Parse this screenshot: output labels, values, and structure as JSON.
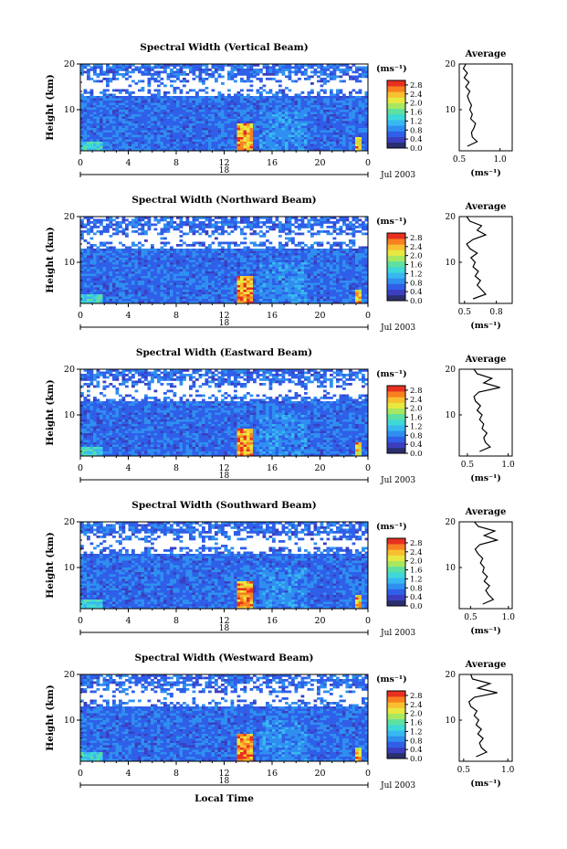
{
  "figure": {
    "x_axis_label": "Local Time",
    "height_axis_label": "Height (km)",
    "date_label": "Jul 2003",
    "day_marker": "18",
    "colorbar_unit": "(ms⁻¹)",
    "average_title": "Average",
    "average_unit": "(ms⁻¹)"
  },
  "colors": {
    "colormap": [
      "#2b2f6e",
      "#3b3fbf",
      "#2f5fe8",
      "#2f8ff0",
      "#38b8f0",
      "#3fd8d8",
      "#5ee0a0",
      "#a8e860",
      "#e8e840",
      "#f8c030",
      "#f88020",
      "#e83020"
    ]
  },
  "chart_data": [
    {
      "type": "heatmap",
      "title": "Spectral Width (Vertical Beam)",
      "xlabel": "Local Time",
      "ylabel": "Height (km)",
      "x_ticks": [
        "0",
        "4",
        "8",
        "12",
        "16",
        "20",
        "0"
      ],
      "y_ticks": [
        "10",
        "20"
      ],
      "xlim": [
        0,
        24
      ],
      "ylim": [
        1,
        20
      ],
      "colorbar": {
        "ticks": [
          "0.0",
          "0.4",
          "0.8",
          "1.2",
          "1.6",
          "2.0",
          "2.4",
          "2.8"
        ],
        "range": [
          0,
          3.0
        ]
      },
      "average_profile": {
        "x_ticks": [
          "0.5",
          "1.0"
        ],
        "y_ticks": [
          "10",
          "20"
        ],
        "xlim": [
          0.5,
          1.15
        ],
        "ylim": [
          1,
          20
        ],
        "height": [
          2,
          3,
          4,
          5,
          6,
          7,
          8,
          9,
          10,
          11,
          12,
          13,
          14,
          15,
          16,
          17,
          18,
          19,
          20
        ],
        "value": [
          0.6,
          0.72,
          0.66,
          0.65,
          0.68,
          0.7,
          0.64,
          0.66,
          0.63,
          0.65,
          0.62,
          0.6,
          0.63,
          0.58,
          0.62,
          0.56,
          0.6,
          0.55,
          0.58
        ]
      }
    },
    {
      "type": "heatmap",
      "title": "Spectral Width (Northward Beam)",
      "xlabel": "Local Time",
      "ylabel": "Height (km)",
      "x_ticks": [
        "0",
        "4",
        "8",
        "12",
        "16",
        "20",
        "0"
      ],
      "y_ticks": [
        "10",
        "20"
      ],
      "xlim": [
        0,
        24
      ],
      "ylim": [
        1,
        20
      ],
      "colorbar": {
        "ticks": [
          "0.0",
          "0.4",
          "0.8",
          "1.2",
          "1.6",
          "2.0",
          "2.4",
          "2.8"
        ],
        "range": [
          0,
          3.0
        ]
      },
      "average_profile": {
        "x_ticks": [
          "0.5",
          "0.8"
        ],
        "y_ticks": [
          "10",
          "20"
        ],
        "xlim": [
          0.45,
          0.95
        ],
        "ylim": [
          1,
          20
        ],
        "height": [
          2,
          3,
          4,
          5,
          6,
          7,
          8,
          9,
          10,
          11,
          12,
          13,
          14,
          15,
          16,
          17,
          18,
          19,
          20
        ],
        "value": [
          0.58,
          0.7,
          0.66,
          0.62,
          0.65,
          0.6,
          0.63,
          0.58,
          0.6,
          0.56,
          0.62,
          0.55,
          0.52,
          0.58,
          0.7,
          0.62,
          0.66,
          0.55,
          0.52
        ]
      }
    },
    {
      "type": "heatmap",
      "title": "Spectral Width (Eastward Beam)",
      "xlabel": "Local Time",
      "ylabel": "Height (km)",
      "x_ticks": [
        "0",
        "4",
        "8",
        "12",
        "16",
        "20",
        "0"
      ],
      "y_ticks": [
        "10",
        "20"
      ],
      "xlim": [
        0,
        24
      ],
      "ylim": [
        1,
        20
      ],
      "colorbar": {
        "ticks": [
          "0.0",
          "0.4",
          "0.8",
          "1.2",
          "1.6",
          "2.0",
          "2.4",
          "2.8"
        ],
        "range": [
          0,
          3.0
        ]
      },
      "average_profile": {
        "x_ticks": [
          "0.5",
          "1.0"
        ],
        "y_ticks": [
          "10",
          "20"
        ],
        "xlim": [
          0.4,
          1.05
        ],
        "ylim": [
          1,
          20
        ],
        "height": [
          2,
          3,
          4,
          5,
          6,
          7,
          8,
          9,
          10,
          11,
          12,
          13,
          14,
          15,
          16,
          17,
          18,
          19,
          20
        ],
        "value": [
          0.65,
          0.78,
          0.72,
          0.7,
          0.74,
          0.68,
          0.7,
          0.65,
          0.68,
          0.62,
          0.66,
          0.6,
          0.58,
          0.64,
          0.9,
          0.7,
          0.8,
          0.62,
          0.58
        ]
      }
    },
    {
      "type": "heatmap",
      "title": "Spectral Width (Southward Beam)",
      "xlabel": "Local Time",
      "ylabel": "Height (km)",
      "x_ticks": [
        "0",
        "4",
        "8",
        "12",
        "16",
        "20",
        "0"
      ],
      "y_ticks": [
        "10",
        "20"
      ],
      "xlim": [
        0,
        24
      ],
      "ylim": [
        1,
        20
      ],
      "colorbar": {
        "ticks": [
          "0.0",
          "0.4",
          "0.8",
          "1.2",
          "1.6",
          "2.0",
          "2.4",
          "2.8"
        ],
        "range": [
          0,
          3.0
        ]
      },
      "average_profile": {
        "x_ticks": [
          "0.5",
          "1.0"
        ],
        "y_ticks": [
          "10",
          "20"
        ],
        "xlim": [
          0.35,
          1.05
        ],
        "ylim": [
          1,
          20
        ],
        "height": [
          2,
          3,
          4,
          5,
          6,
          7,
          8,
          9,
          10,
          11,
          12,
          13,
          14,
          15,
          16,
          17,
          18,
          19,
          20
        ],
        "value": [
          0.66,
          0.8,
          0.74,
          0.7,
          0.75,
          0.68,
          0.72,
          0.66,
          0.68,
          0.63,
          0.66,
          0.6,
          0.56,
          0.62,
          0.85,
          0.68,
          0.82,
          0.6,
          0.55
        ]
      }
    },
    {
      "type": "heatmap",
      "title": "Spectral Width (Westward Beam)",
      "xlabel": "Local Time",
      "ylabel": "Height (km)",
      "x_ticks": [
        "0",
        "4",
        "8",
        "12",
        "16",
        "20",
        "0"
      ],
      "y_ticks": [
        "10",
        "20"
      ],
      "xlim": [
        0,
        24
      ],
      "ylim": [
        1,
        20
      ],
      "colorbar": {
        "ticks": [
          "0.0",
          "0.4",
          "0.8",
          "1.2",
          "1.6",
          "2.0",
          "2.4",
          "2.8"
        ],
        "range": [
          0,
          3.0
        ]
      },
      "average_profile": {
        "x_ticks": [
          "0.5",
          "1.0"
        ],
        "y_ticks": [
          "10",
          "20"
        ],
        "xlim": [
          0.45,
          1.05
        ],
        "ylim": [
          1,
          20
        ],
        "height": [
          2,
          3,
          4,
          5,
          6,
          7,
          8,
          9,
          10,
          11,
          12,
          13,
          14,
          15,
          16,
          17,
          18,
          19,
          20
        ],
        "value": [
          0.64,
          0.76,
          0.7,
          0.68,
          0.72,
          0.66,
          0.7,
          0.64,
          0.67,
          0.62,
          0.65,
          0.58,
          0.56,
          0.62,
          0.88,
          0.66,
          0.8,
          0.6,
          0.58
        ]
      }
    }
  ]
}
